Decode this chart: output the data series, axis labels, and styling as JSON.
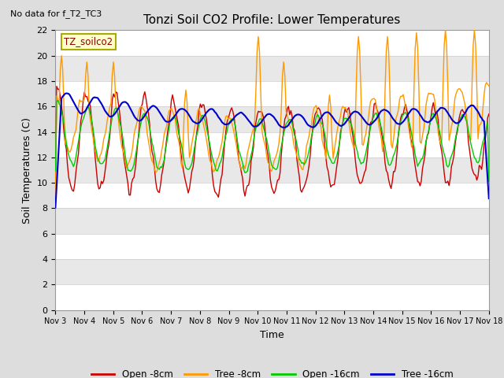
{
  "title": "Tonzi Soil CO2 Profile: Lower Temperatures",
  "subtitle": "No data for f_T2_TC3",
  "ylabel": "Soil Temperatures (C)",
  "xlabel": "Time",
  "legend_label": "TZ_soilco2",
  "ylim": [
    0,
    22
  ],
  "yticks": [
    0,
    2,
    4,
    6,
    8,
    10,
    12,
    14,
    16,
    18,
    20,
    22
  ],
  "xtick_labels": [
    "Nov 3",
    "Nov 4",
    "Nov 5",
    "Nov 6",
    "Nov 7",
    "Nov 8",
    "Nov 9",
    "Nov 10",
    "Nov 11",
    "Nov 12",
    "Nov 13",
    "Nov 14",
    "Nov 15",
    "Nov 16",
    "Nov 17",
    "Nov 18"
  ],
  "colors": {
    "open_8cm": "#cc0000",
    "tree_8cm": "#ff9900",
    "open_16cm": "#00cc00",
    "tree_16cm": "#0000cc"
  },
  "legend_entries": [
    "Open -8cm",
    "Tree -8cm",
    "Open -16cm",
    "Tree -16cm"
  ],
  "background_color": "#dddddd",
  "grid_bg_even": "#e8e8e8",
  "grid_bg_odd": "#ffffff"
}
